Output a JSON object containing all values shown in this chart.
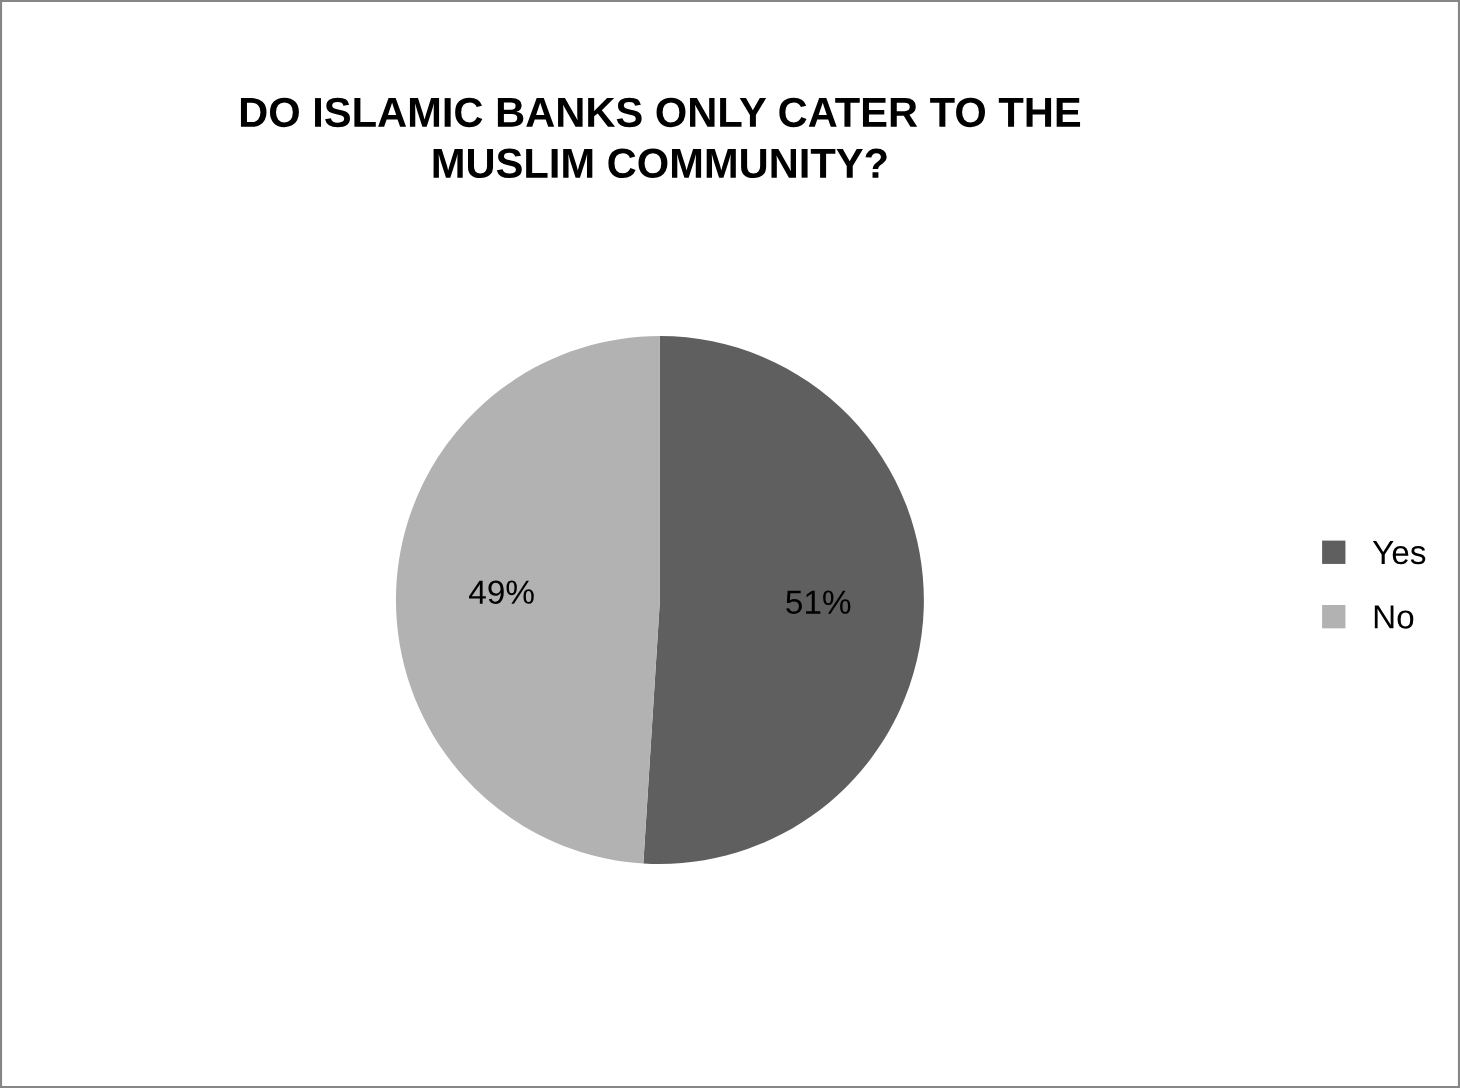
{
  "chart_data": {
    "type": "pie",
    "title": "DO ISLAMIC BANKS ONLY CATER TO THE\nMUSLIM COMMUNITY?",
    "categories": [
      "Yes",
      "No"
    ],
    "values": [
      51,
      49
    ],
    "colors": [
      "#5f5f5f",
      "#b2b2b2"
    ],
    "value_labels": [
      "51%",
      "49%"
    ],
    "legend": "right"
  }
}
